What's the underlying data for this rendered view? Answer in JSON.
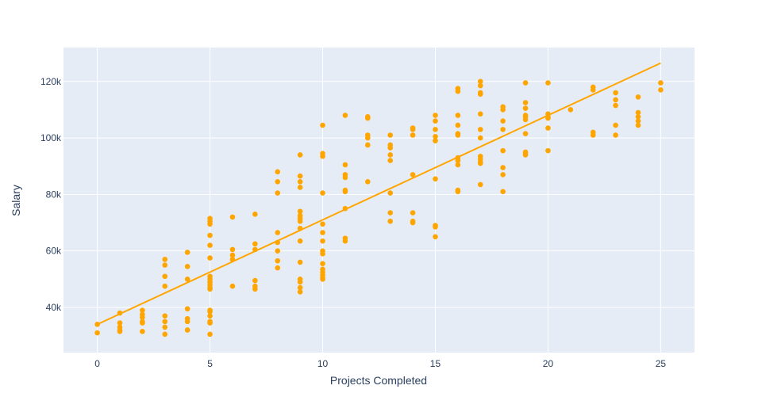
{
  "chart_data": {
    "type": "scatter",
    "title": "",
    "xlabel": "Projects Completed",
    "ylabel": "Salary",
    "xlim": [
      -1.5,
      26.5
    ],
    "ylim": [
      24000,
      132000
    ],
    "xticks": [
      0,
      5,
      10,
      15,
      20,
      25
    ],
    "xtick_labels": [
      "0",
      "5",
      "10",
      "15",
      "20",
      "25"
    ],
    "yticks": [
      40000,
      60000,
      80000,
      100000,
      120000
    ],
    "ytick_labels": [
      "40k",
      "60k",
      "80k",
      "100k",
      "120k"
    ],
    "grid": true,
    "legend": "none",
    "colors": {
      "background": "#e5ecf6",
      "grid": "#ffffff",
      "points": "#ffa500",
      "trendline": "#ffa500"
    },
    "series": [
      {
        "type": "scatter",
        "points": [
          [
            0,
            34000
          ],
          [
            0,
            31000
          ],
          [
            1,
            38000
          ],
          [
            1,
            34500
          ],
          [
            1,
            33000
          ],
          [
            1,
            32000
          ],
          [
            1,
            31500
          ],
          [
            2,
            39000
          ],
          [
            2,
            37500
          ],
          [
            2,
            36500
          ],
          [
            2,
            35000
          ],
          [
            2,
            34500
          ],
          [
            2,
            31500
          ],
          [
            3,
            57000
          ],
          [
            3,
            55000
          ],
          [
            3,
            51000
          ],
          [
            3,
            47500
          ],
          [
            3,
            37000
          ],
          [
            3,
            35000
          ],
          [
            3,
            33000
          ],
          [
            3,
            30500
          ],
          [
            4,
            59500
          ],
          [
            4,
            54500
          ],
          [
            4,
            50000
          ],
          [
            4,
            39500
          ],
          [
            4,
            36000
          ],
          [
            4,
            35000
          ],
          [
            4,
            32000
          ],
          [
            5,
            71500
          ],
          [
            5,
            70500
          ],
          [
            5,
            69500
          ],
          [
            5,
            65500
          ],
          [
            5,
            62000
          ],
          [
            5,
            57500
          ],
          [
            5,
            51000
          ],
          [
            5,
            50000
          ],
          [
            5,
            49000
          ],
          [
            5,
            48000
          ],
          [
            5,
            47000
          ],
          [
            5,
            46500
          ],
          [
            5,
            39000
          ],
          [
            5,
            38500
          ],
          [
            5,
            37000
          ],
          [
            5,
            35000
          ],
          [
            5,
            34500
          ],
          [
            5,
            30500
          ],
          [
            6,
            72000
          ],
          [
            6,
            60500
          ],
          [
            6,
            58500
          ],
          [
            6,
            57000
          ],
          [
            6,
            47500
          ],
          [
            7,
            73000
          ],
          [
            7,
            62500
          ],
          [
            7,
            60500
          ],
          [
            7,
            49500
          ],
          [
            7,
            47500
          ],
          [
            7,
            46500
          ],
          [
            8,
            88000
          ],
          [
            8,
            84500
          ],
          [
            8,
            80500
          ],
          [
            8,
            66500
          ],
          [
            8,
            63000
          ],
          [
            8,
            60000
          ],
          [
            8,
            56500
          ],
          [
            8,
            54000
          ],
          [
            9,
            94000
          ],
          [
            9,
            86500
          ],
          [
            9,
            84500
          ],
          [
            9,
            82500
          ],
          [
            9,
            74000
          ],
          [
            9,
            72500
          ],
          [
            9,
            71500
          ],
          [
            9,
            70500
          ],
          [
            9,
            68000
          ],
          [
            9,
            63500
          ],
          [
            9,
            56000
          ],
          [
            9,
            50000
          ],
          [
            9,
            49000
          ],
          [
            9,
            47000
          ],
          [
            9,
            45500
          ],
          [
            10,
            104500
          ],
          [
            10,
            94500
          ],
          [
            10,
            93500
          ],
          [
            10,
            80500
          ],
          [
            10,
            69500
          ],
          [
            10,
            66500
          ],
          [
            10,
            63500
          ],
          [
            10,
            60000
          ],
          [
            10,
            59000
          ],
          [
            10,
            55500
          ],
          [
            10,
            53500
          ],
          [
            10,
            52500
          ],
          [
            10,
            51500
          ],
          [
            10,
            50500
          ],
          [
            10,
            50000
          ],
          [
            11,
            108000
          ],
          [
            11,
            90500
          ],
          [
            11,
            87000
          ],
          [
            11,
            86000
          ],
          [
            11,
            81500
          ],
          [
            11,
            81000
          ],
          [
            11,
            75000
          ],
          [
            11,
            64500
          ],
          [
            11,
            63500
          ],
          [
            12,
            107500
          ],
          [
            12,
            107000
          ],
          [
            12,
            101000
          ],
          [
            12,
            100000
          ],
          [
            12,
            97500
          ],
          [
            12,
            84500
          ],
          [
            13,
            101000
          ],
          [
            13,
            97500
          ],
          [
            13,
            96500
          ],
          [
            13,
            94000
          ],
          [
            13,
            92000
          ],
          [
            13,
            80500
          ],
          [
            13,
            73500
          ],
          [
            13,
            70500
          ],
          [
            14,
            103500
          ],
          [
            14,
            103000
          ],
          [
            14,
            101000
          ],
          [
            14,
            87000
          ],
          [
            14,
            73500
          ],
          [
            14,
            70500
          ],
          [
            14,
            70000
          ],
          [
            15,
            108000
          ],
          [
            15,
            106000
          ],
          [
            15,
            103000
          ],
          [
            15,
            100500
          ],
          [
            15,
            99000
          ],
          [
            15,
            85500
          ],
          [
            15,
            69000
          ],
          [
            15,
            68500
          ],
          [
            15,
            65000
          ],
          [
            16,
            117500
          ],
          [
            16,
            116500
          ],
          [
            16,
            108000
          ],
          [
            16,
            104500
          ],
          [
            16,
            101500
          ],
          [
            16,
            101000
          ],
          [
            16,
            93000
          ],
          [
            16,
            92000
          ],
          [
            16,
            90500
          ],
          [
            16,
            81500
          ],
          [
            16,
            81000
          ],
          [
            17,
            120000
          ],
          [
            17,
            118500
          ],
          [
            17,
            116000
          ],
          [
            17,
            115500
          ],
          [
            17,
            108500
          ],
          [
            17,
            103000
          ],
          [
            17,
            100000
          ],
          [
            17,
            93500
          ],
          [
            17,
            92500
          ],
          [
            17,
            91500
          ],
          [
            17,
            91000
          ],
          [
            17,
            83500
          ],
          [
            18,
            111000
          ],
          [
            18,
            110000
          ],
          [
            18,
            106000
          ],
          [
            18,
            103000
          ],
          [
            18,
            95500
          ],
          [
            18,
            89500
          ],
          [
            18,
            87000
          ],
          [
            18,
            81000
          ],
          [
            19,
            119500
          ],
          [
            19,
            112500
          ],
          [
            19,
            110500
          ],
          [
            19,
            108000
          ],
          [
            19,
            107500
          ],
          [
            19,
            106500
          ],
          [
            19,
            101500
          ],
          [
            19,
            95000
          ],
          [
            19,
            94500
          ],
          [
            19,
            94000
          ],
          [
            20,
            119500
          ],
          [
            20,
            108500
          ],
          [
            20,
            107500
          ],
          [
            20,
            107000
          ],
          [
            20,
            103500
          ],
          [
            20,
            95500
          ],
          [
            21,
            110000
          ],
          [
            22,
            118000
          ],
          [
            22,
            117000
          ],
          [
            22,
            102000
          ],
          [
            22,
            101000
          ],
          [
            23,
            116000
          ],
          [
            23,
            113500
          ],
          [
            23,
            111500
          ],
          [
            23,
            104500
          ],
          [
            23,
            101000
          ],
          [
            24,
            114500
          ],
          [
            24,
            109000
          ],
          [
            24,
            107500
          ],
          [
            24,
            106000
          ],
          [
            24,
            104500
          ],
          [
            25,
            119500
          ],
          [
            25,
            117000
          ]
        ]
      },
      {
        "type": "line",
        "points": [
          [
            0,
            34000
          ],
          [
            25,
            126500
          ]
        ]
      }
    ]
  }
}
